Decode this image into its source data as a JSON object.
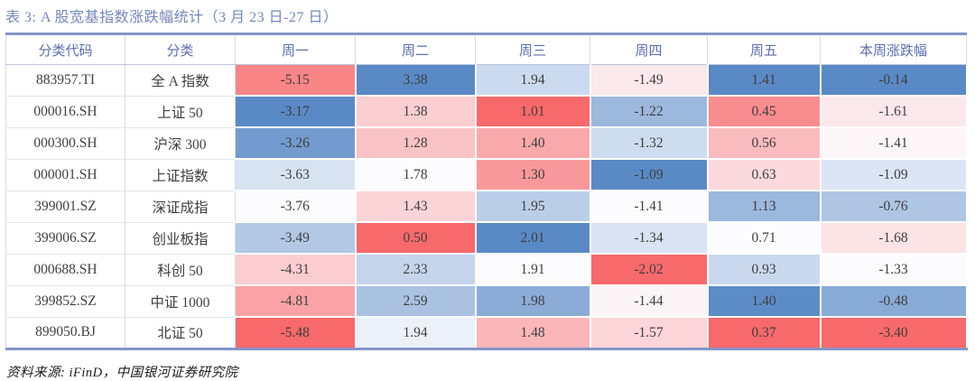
{
  "title": "表 3: A 股宽基指数涨跌幅统计（3 月 23 日-27 日）",
  "source_note": "资料来源: iFinD，中国银河证券研究院",
  "colors": {
    "title_text": "#7387BA",
    "header_text": "#5A6EB2",
    "cell_text": "#3F3F3F",
    "table_border": "#8495C7"
  },
  "table": {
    "columns": [
      "分类代码",
      "分类",
      "周一",
      "周二",
      "周三",
      "周四",
      "周五",
      "本周涨跌幅"
    ],
    "rows": [
      {
        "code": "883957.TI",
        "name": "全 A 指数",
        "values": [
          -5.15,
          3.38,
          1.94,
          -1.49,
          1.41,
          -0.14
        ]
      },
      {
        "code": "000016.SH",
        "name": "上证 50",
        "values": [
          -3.17,
          1.38,
          1.01,
          -1.22,
          0.45,
          -1.61
        ]
      },
      {
        "code": "000300.SH",
        "name": "沪深 300",
        "values": [
          -3.26,
          1.28,
          1.4,
          -1.32,
          0.56,
          -1.41
        ]
      },
      {
        "code": "000001.SH",
        "name": "上证指数",
        "values": [
          -3.63,
          1.78,
          1.3,
          -1.09,
          0.63,
          -1.09
        ]
      },
      {
        "code": "399001.SZ",
        "name": "深证成指",
        "values": [
          -3.76,
          1.43,
          1.95,
          -1.41,
          1.13,
          -0.76
        ]
      },
      {
        "code": "399006.SZ",
        "name": "创业板指",
        "values": [
          -3.49,
          0.5,
          2.01,
          -1.34,
          0.71,
          -1.68
        ]
      },
      {
        "code": "000688.SH",
        "name": "科创 50",
        "values": [
          -4.31,
          2.33,
          1.91,
          -2.02,
          0.93,
          -1.33
        ]
      },
      {
        "code": "399852.SZ",
        "name": "中证 1000",
        "values": [
          -4.81,
          2.59,
          1.98,
          -1.44,
          1.4,
          -0.48
        ]
      },
      {
        "code": "899050.BJ",
        "name": "北证 50",
        "values": [
          -5.48,
          1.94,
          1.48,
          -1.57,
          0.37,
          -3.4
        ]
      }
    ],
    "heatmap": {
      "mode": "per-column-3-color-scale",
      "midpoint": "50th-percentile",
      "min_color": "#F8696B",
      "mid_color": "#FCFCFF",
      "max_color": "#5A8AC6"
    },
    "value_decimals": 2
  }
}
